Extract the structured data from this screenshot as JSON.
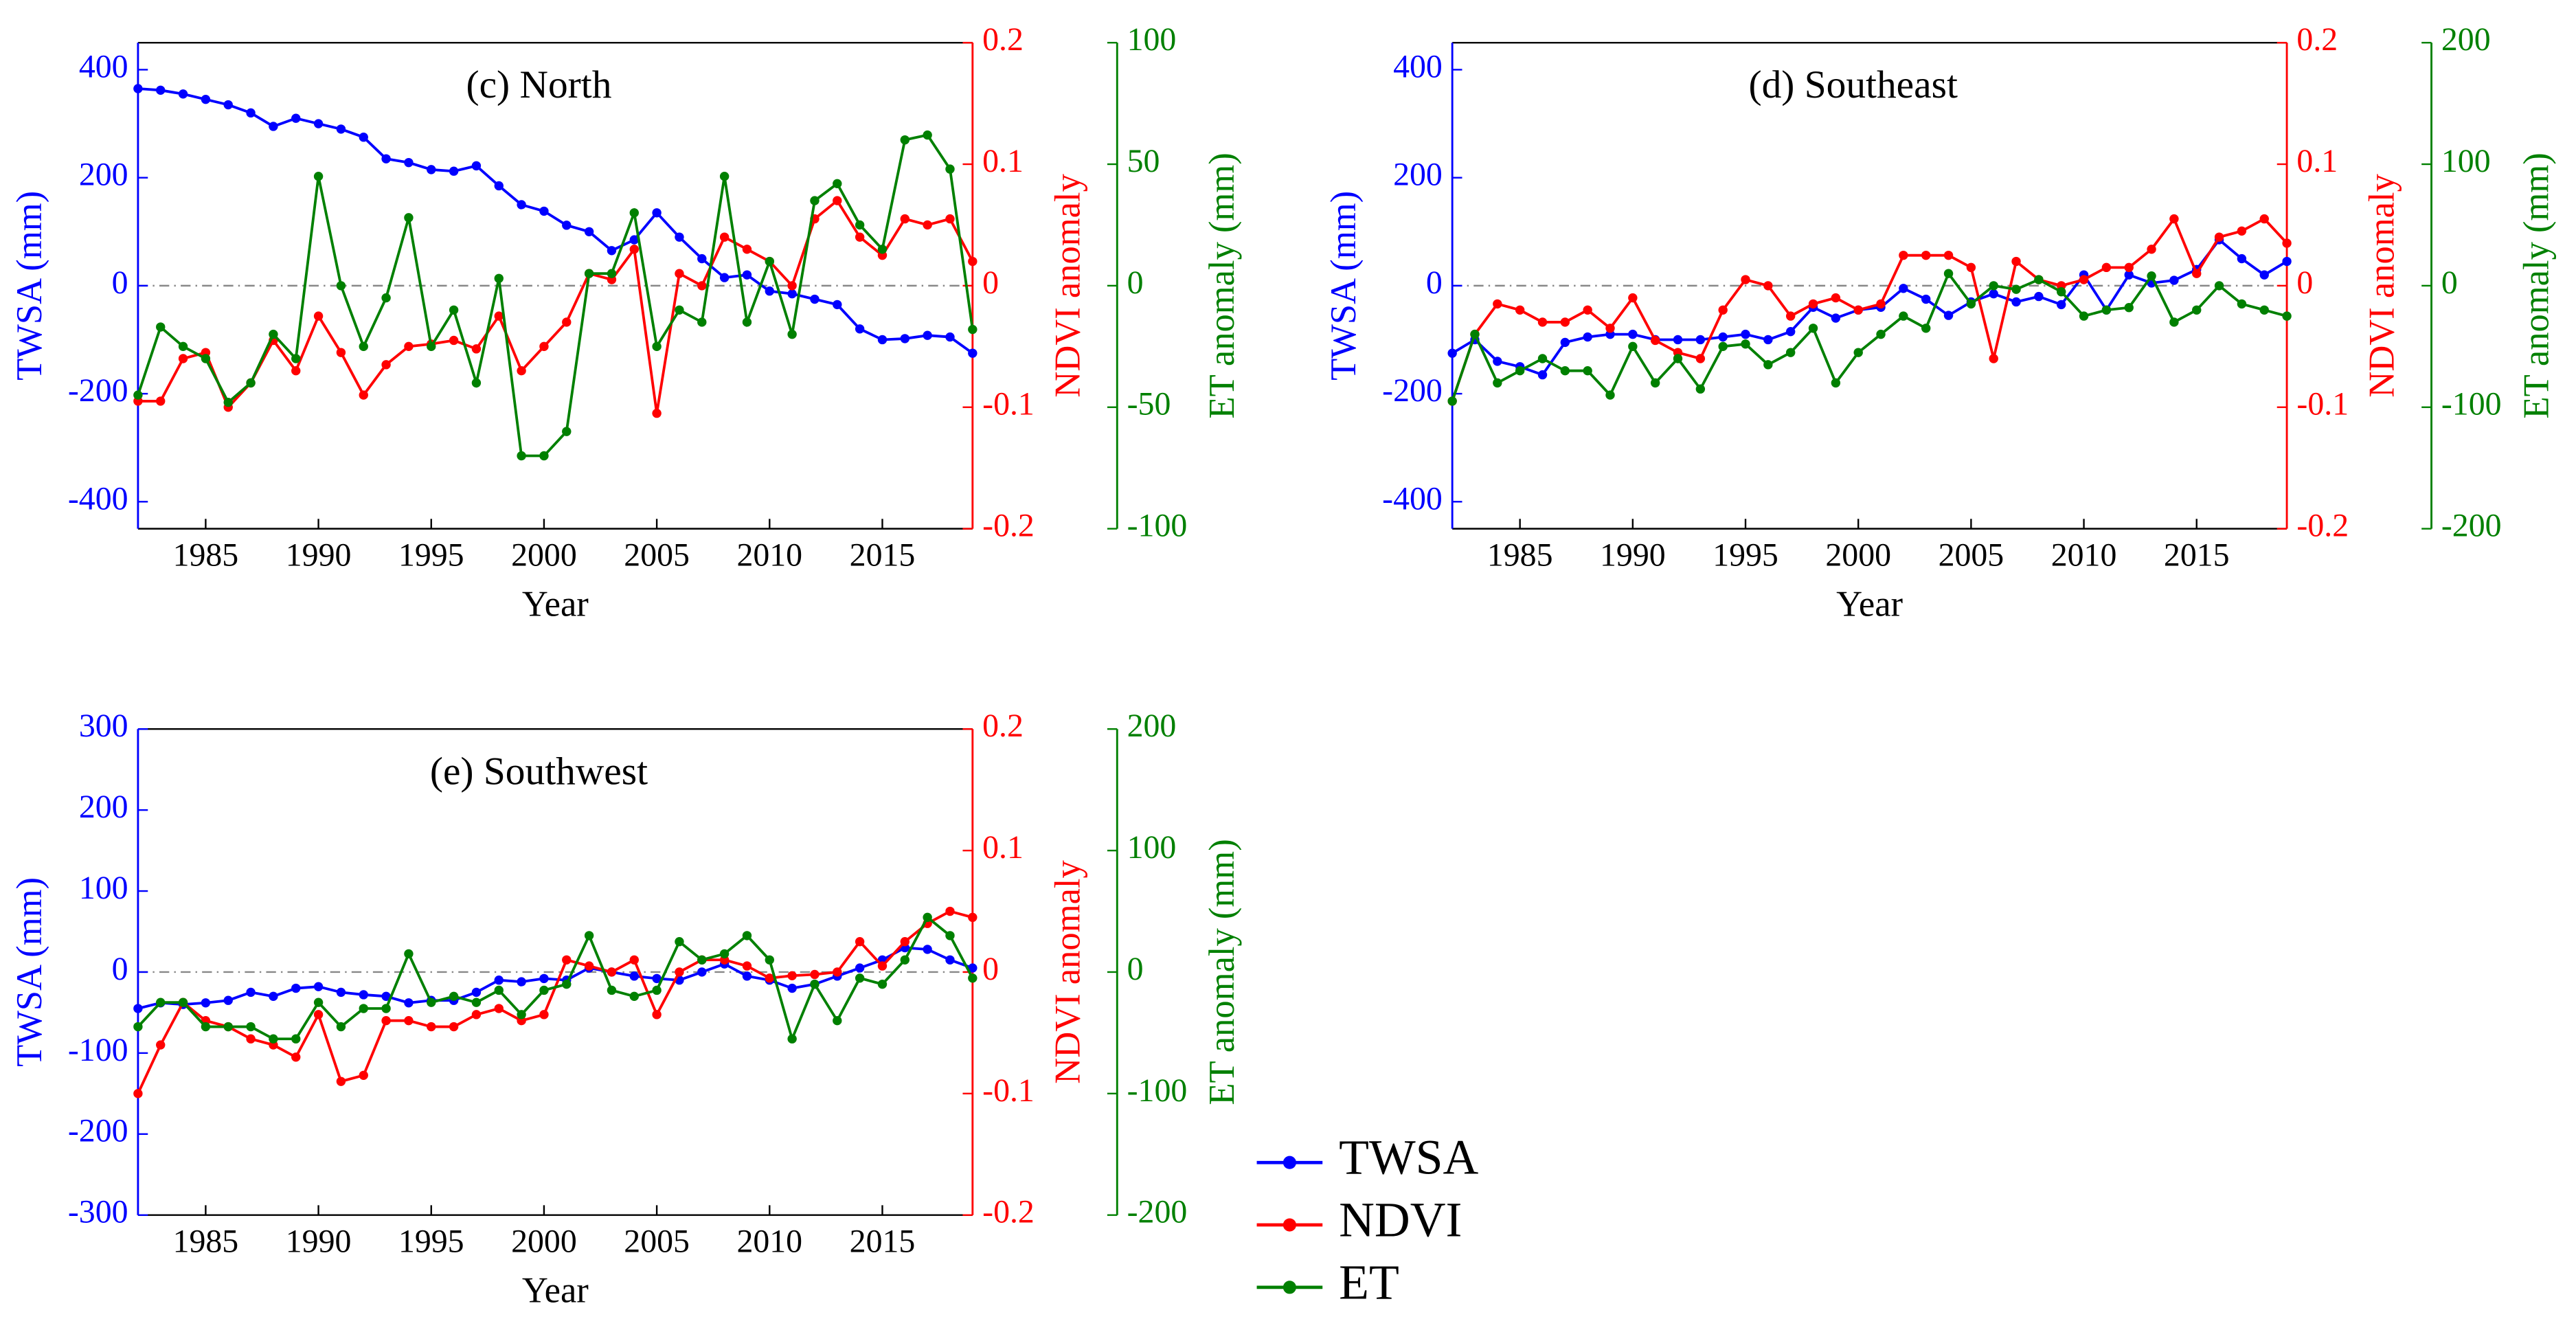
{
  "chart_data": [
    {
      "type": "line",
      "title": "(c) North",
      "xlabel": "Year",
      "ylabel": "TWSA (mm)",
      "y2label": "NDVI anomaly",
      "y3label": "ET anomaly (mm)",
      "x": [
        1982,
        1983,
        1984,
        1985,
        1986,
        1987,
        1988,
        1989,
        1990,
        1991,
        1992,
        1993,
        1994,
        1995,
        1996,
        1997,
        1998,
        1999,
        2000,
        2001,
        2002,
        2003,
        2004,
        2005,
        2006,
        2007,
        2008,
        2009,
        2010,
        2011,
        2012,
        2013,
        2014,
        2015,
        2016,
        2017,
        2018,
        2019
      ],
      "xlim": [
        1982,
        2019
      ],
      "xticks": [
        1985,
        1990,
        1995,
        2000,
        2005,
        2010,
        2015
      ],
      "ylim": [
        -450,
        450
      ],
      "yticks": [
        400,
        200,
        0,
        -200,
        -400
      ],
      "y2lim": [
        -0.2,
        0.2
      ],
      "y2ticks": [
        0.2,
        0.1,
        0,
        -0.1,
        -0.2
      ],
      "y3lim": [
        -100,
        100
      ],
      "y3ticks": [
        100,
        50,
        0,
        -50,
        -100
      ],
      "series": [
        {
          "name": "TWSA",
          "color": "#0000ff",
          "axis": "y",
          "values": [
            365,
            362,
            355,
            345,
            335,
            320,
            295,
            310,
            300,
            290,
            275,
            235,
            228,
            215,
            212,
            222,
            185,
            150,
            138,
            112,
            100,
            65,
            85,
            135,
            90,
            50,
            15,
            20,
            -10,
            -15,
            -25,
            -35,
            -80,
            -100,
            -98,
            -92,
            -95,
            -125
          ]
        },
        {
          "name": "NDVI",
          "color": "#ff0000",
          "axis": "y2",
          "values": [
            -0.095,
            -0.095,
            -0.06,
            -0.055,
            -0.1,
            -0.08,
            -0.045,
            -0.07,
            -0.025,
            -0.055,
            -0.09,
            -0.065,
            -0.05,
            -0.048,
            -0.045,
            -0.052,
            -0.025,
            -0.07,
            -0.05,
            -0.03,
            0.01,
            0.005,
            0.03,
            -0.105,
            0.01,
            0.0,
            0.04,
            0.03,
            0.02,
            0.0,
            0.055,
            0.07,
            0.04,
            0.025,
            0.055,
            0.05,
            0.055,
            0.02
          ]
        },
        {
          "name": "ET",
          "color": "#008000",
          "axis": "y3",
          "values": [
            -45,
            -17,
            -25,
            -30,
            -48,
            -40,
            -20,
            -30,
            45,
            0,
            -25,
            -5,
            28,
            -25,
            -10,
            -40,
            3,
            -70,
            -70,
            -60,
            5,
            5,
            30,
            -25,
            -10,
            -15,
            45,
            -15,
            10,
            -20,
            35,
            42,
            25,
            15,
            60,
            62,
            48,
            -18
          ]
        }
      ]
    },
    {
      "type": "line",
      "title": "(d) Southeast",
      "xlabel": "Year",
      "ylabel": "TWSA (mm)",
      "y2label": "NDVI anomaly",
      "y3label": "ET anomaly (mm)",
      "x": [
        1982,
        1983,
        1984,
        1985,
        1986,
        1987,
        1988,
        1989,
        1990,
        1991,
        1992,
        1993,
        1994,
        1995,
        1996,
        1997,
        1998,
        1999,
        2000,
        2001,
        2002,
        2003,
        2004,
        2005,
        2006,
        2007,
        2008,
        2009,
        2010,
        2011,
        2012,
        2013,
        2014,
        2015,
        2016,
        2017,
        2018,
        2019
      ],
      "xlim": [
        1982,
        2019
      ],
      "xticks": [
        1985,
        1990,
        1995,
        2000,
        2005,
        2010,
        2015
      ],
      "ylim": [
        -450,
        450
      ],
      "yticks": [
        400,
        200,
        0,
        -200,
        -400
      ],
      "y2lim": [
        -0.2,
        0.2
      ],
      "y2ticks": [
        0.2,
        0.1,
        0,
        -0.1,
        -0.2
      ],
      "y3lim": [
        -200,
        200
      ],
      "y3ticks": [
        200,
        100,
        0,
        -100,
        -200
      ],
      "series": [
        {
          "name": "TWSA",
          "color": "#0000ff",
          "axis": "y",
          "values": [
            -125,
            -100,
            -140,
            -150,
            -165,
            -105,
            -95,
            -90,
            -90,
            -100,
            -100,
            -100,
            -95,
            -90,
            -100,
            -85,
            -40,
            -60,
            -45,
            -40,
            -5,
            -25,
            -55,
            -30,
            -15,
            -30,
            -20,
            -35,
            20,
            -45,
            20,
            5,
            10,
            30,
            85,
            50,
            20,
            45
          ]
        },
        {
          "name": "NDVI",
          "color": "#ff0000",
          "axis": "y2",
          "values": [
            -0.095,
            -0.04,
            -0.015,
            -0.02,
            -0.03,
            -0.03,
            -0.02,
            -0.035,
            -0.01,
            -0.045,
            -0.055,
            -0.06,
            -0.02,
            0.005,
            0.0,
            -0.025,
            -0.015,
            -0.01,
            -0.02,
            -0.015,
            0.025,
            0.025,
            0.025,
            0.015,
            -0.06,
            0.02,
            0.005,
            0.0,
            0.005,
            0.015,
            0.015,
            0.03,
            0.055,
            0.01,
            0.04,
            0.045,
            0.055,
            0.035
          ]
        },
        {
          "name": "ET",
          "color": "#008000",
          "axis": "y3",
          "values": [
            -95,
            -40,
            -80,
            -70,
            -60,
            -70,
            -70,
            -90,
            -50,
            -80,
            -60,
            -85,
            -50,
            -48,
            -65,
            -55,
            -35,
            -80,
            -55,
            -40,
            -25,
            -35,
            10,
            -15,
            0,
            -3,
            5,
            -5,
            -25,
            -20,
            -18,
            8,
            -30,
            -20,
            0,
            -15,
            -20,
            -25
          ]
        }
      ]
    },
    {
      "type": "line",
      "title": "(e) Southwest",
      "xlabel": "Year",
      "ylabel": "TWSA (mm)",
      "y2label": "NDVI anomaly",
      "y3label": "ET anomaly (mm)",
      "x": [
        1982,
        1983,
        1984,
        1985,
        1986,
        1987,
        1988,
        1989,
        1990,
        1991,
        1992,
        1993,
        1994,
        1995,
        1996,
        1997,
        1998,
        1999,
        2000,
        2001,
        2002,
        2003,
        2004,
        2005,
        2006,
        2007,
        2008,
        2009,
        2010,
        2011,
        2012,
        2013,
        2014,
        2015,
        2016,
        2017,
        2018,
        2019
      ],
      "xlim": [
        1982,
        2019
      ],
      "xticks": [
        1985,
        1990,
        1995,
        2000,
        2005,
        2010,
        2015
      ],
      "ylim": [
        -300,
        300
      ],
      "yticks": [
        300,
        200,
        100,
        0,
        -100,
        -200,
        -300
      ],
      "y2lim": [
        -0.2,
        0.2
      ],
      "y2ticks": [
        0.2,
        0.1,
        0,
        -0.1,
        -0.2
      ],
      "y3lim": [
        -200,
        200
      ],
      "y3ticks": [
        200,
        100,
        0,
        -100,
        -200
      ],
      "series": [
        {
          "name": "TWSA",
          "color": "#0000ff",
          "axis": "y",
          "values": [
            -45,
            -38,
            -40,
            -38,
            -35,
            -25,
            -30,
            -20,
            -18,
            -25,
            -28,
            -30,
            -38,
            -35,
            -35,
            -25,
            -10,
            -12,
            -8,
            -10,
            5,
            0,
            -5,
            -8,
            -10,
            0,
            10,
            -5,
            -10,
            -20,
            -15,
            -5,
            5,
            15,
            30,
            28,
            15,
            5
          ]
        },
        {
          "name": "NDVI",
          "color": "#ff0000",
          "axis": "y2",
          "values": [
            -0.1,
            -0.06,
            -0.025,
            -0.04,
            -0.045,
            -0.055,
            -0.06,
            -0.07,
            -0.035,
            -0.09,
            -0.085,
            -0.04,
            -0.04,
            -0.045,
            -0.045,
            -0.035,
            -0.03,
            -0.04,
            -0.035,
            0.01,
            0.005,
            0.0,
            0.01,
            -0.035,
            0.0,
            0.01,
            0.01,
            0.005,
            -0.005,
            -0.003,
            -0.002,
            0.0,
            0.025,
            0.005,
            0.025,
            0.04,
            0.05,
            0.045
          ]
        },
        {
          "name": "ET",
          "color": "#008000",
          "axis": "y3",
          "values": [
            -45,
            -25,
            -25,
            -45,
            -45,
            -45,
            -55,
            -55,
            -25,
            -45,
            -30,
            -30,
            15,
            -25,
            -20,
            -25,
            -15,
            -35,
            -15,
            -10,
            30,
            -15,
            -20,
            -15,
            25,
            10,
            15,
            30,
            10,
            -55,
            -10,
            -40,
            -5,
            -10,
            10,
            45,
            30,
            -5
          ]
        }
      ]
    }
  ]
}
